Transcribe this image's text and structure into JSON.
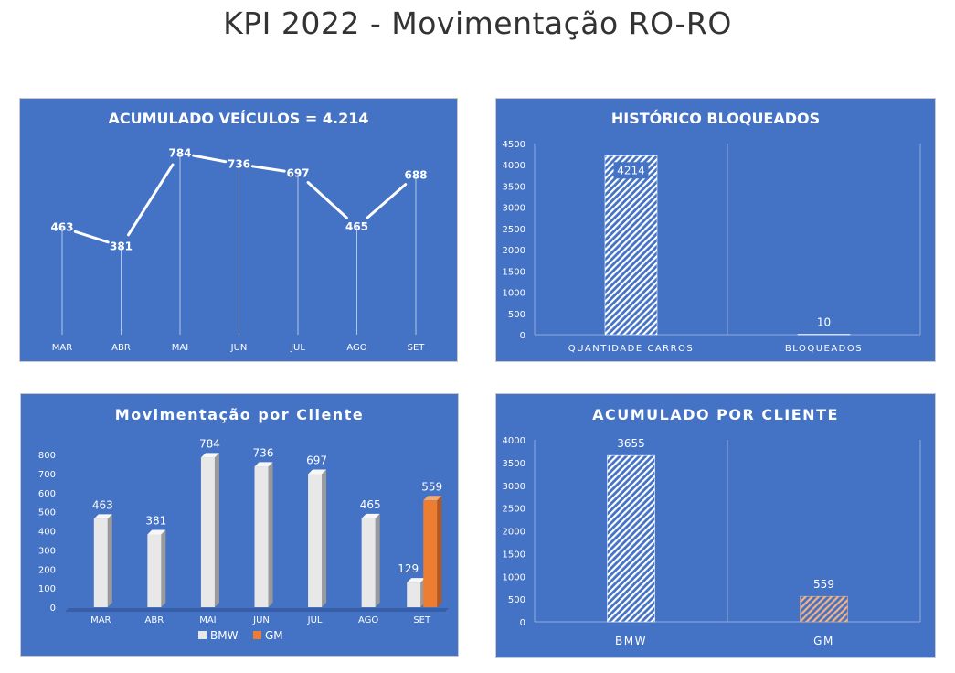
{
  "page": {
    "title": "KPI 2022 - Movimentação RO-RO"
  },
  "colors": {
    "panel_bg": "#4472C4",
    "bmw": "#E8E8E8",
    "gm": "#ED7D31",
    "line": "#FFFFFF"
  },
  "chart_data": [
    {
      "id": "acumulado-veiculos",
      "type": "line",
      "title": "ACUMULADO VEÍCULOS = 4.214",
      "categories": [
        "MAR",
        "ABR",
        "MAI",
        "JUN",
        "JUL",
        "AGO",
        "SET"
      ],
      "values": [
        463,
        381,
        784,
        736,
        697,
        465,
        688
      ],
      "ylim": [
        0,
        900
      ],
      "grid": false,
      "drop_lines": true
    },
    {
      "id": "historico-bloqueados",
      "type": "bar",
      "title": "HISTÓRICO BLOQUEADOS",
      "categories": [
        "QUANTIDADE CARROS",
        "BLOQUEADOS"
      ],
      "values": [
        4214,
        10
      ],
      "ylim": [
        0,
        4500
      ],
      "yticks": [
        0,
        500,
        1000,
        1500,
        2000,
        2500,
        3000,
        3500,
        4000,
        4500
      ],
      "pattern": "hatched"
    },
    {
      "id": "movimentacao-cliente",
      "type": "bar",
      "title": "Movimentação por Cliente",
      "categories": [
        "MAR",
        "ABR",
        "MAI",
        "JUN",
        "JUL",
        "AGO",
        "SET"
      ],
      "series": [
        {
          "name": "BMW",
          "values": [
            463,
            381,
            784,
            736,
            697,
            465,
            129
          ]
        },
        {
          "name": "GM",
          "values": [
            null,
            null,
            null,
            null,
            null,
            null,
            559
          ]
        }
      ],
      "ylim": [
        0,
        800
      ],
      "yticks": [
        0,
        100,
        200,
        300,
        400,
        500,
        600,
        700,
        800
      ],
      "legend": "bottom",
      "style": "3d-column"
    },
    {
      "id": "acumulado-cliente",
      "type": "bar",
      "title": "ACUMULADO POR CLIENTE",
      "categories": [
        "BMW",
        "GM"
      ],
      "values": [
        3655,
        559
      ],
      "ylim": [
        0,
        4000
      ],
      "yticks": [
        0,
        500,
        1000,
        1500,
        2000,
        2500,
        3000,
        3500,
        4000
      ],
      "pattern": "hatched"
    }
  ]
}
